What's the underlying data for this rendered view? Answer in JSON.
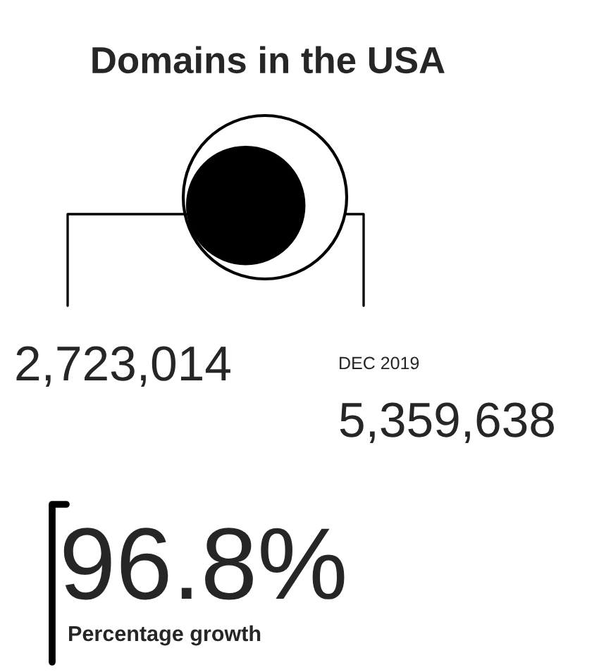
{
  "chart_data": {
    "type": "other",
    "title": "Domains in the USA",
    "categories": [
      null,
      "DEC 2019"
    ],
    "values": [
      2723014,
      5359638
    ],
    "colors": [
      "#000000",
      "#ffffff"
    ],
    "value_labels": [
      "2,723,014",
      "5,359,638"
    ],
    "annotations": [
      "96.8%",
      "Percentage growth"
    ]
  }
}
